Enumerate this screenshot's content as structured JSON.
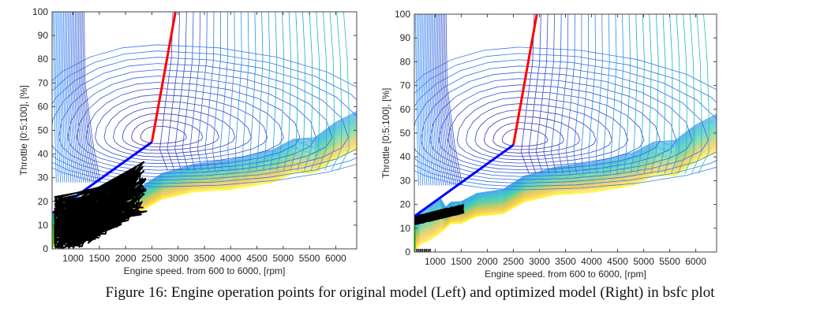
{
  "chart_data": [
    {
      "type": "line",
      "id": "left",
      "panel_label": "original model (Left)",
      "title": "",
      "xlabel": "Engine speed. from 600 to 6000, [rpm]",
      "ylabel": "Throttle [0:5:100], [%]",
      "xlim": [
        600,
        6400
      ],
      "ylim": [
        0,
        100
      ],
      "xticks": [
        1000,
        1500,
        2000,
        2500,
        3000,
        3500,
        4000,
        4500,
        5000,
        5500,
        6000
      ],
      "yticks": [
        0,
        10,
        20,
        30,
        40,
        50,
        60,
        70,
        80,
        90,
        100
      ],
      "grid": false,
      "background": "bsfc contour map (parula colormap, blue low to yellow high)",
      "series": [
        {
          "name": "max-power line",
          "color": "#ff0000",
          "points": [
            [
              2500,
              45
            ],
            [
              2950,
              100
            ]
          ]
        },
        {
          "name": "optimal line",
          "color": "#0000ff",
          "points": [
            [
              600,
              15
            ],
            [
              2500,
              45
            ]
          ]
        },
        {
          "name": "idle line",
          "color": "#00cc00",
          "points": [
            [
              600,
              0
            ],
            [
              600,
              15
            ]
          ]
        },
        {
          "name": "operation points",
          "color": "#000000",
          "region": {
            "x": [
              650,
              2400
            ],
            "y": [
              0,
              37
            ]
          }
        }
      ]
    },
    {
      "type": "line",
      "id": "right",
      "panel_label": "optimized model (Right)",
      "title": "",
      "xlabel": "Engine speed. from 600 to 6000, [rpm]",
      "ylabel": "Throttle [0:5:100], [%]",
      "xlim": [
        600,
        6400
      ],
      "ylim": [
        0,
        100
      ],
      "xticks": [
        1000,
        1500,
        2000,
        2500,
        3000,
        3500,
        4000,
        4500,
        5000,
        5500,
        6000
      ],
      "yticks": [
        0,
        10,
        20,
        30,
        40,
        50,
        60,
        70,
        80,
        90,
        100
      ],
      "grid": false,
      "background": "bsfc contour map (parula colormap, blue low to yellow high)",
      "series": [
        {
          "name": "max-power line",
          "color": "#ff0000",
          "points": [
            [
              2500,
              45
            ],
            [
              2950,
              100
            ]
          ]
        },
        {
          "name": "optimal line",
          "color": "#0000ff",
          "points": [
            [
              600,
              15
            ],
            [
              2500,
              45
            ]
          ]
        },
        {
          "name": "idle line",
          "color": "#00cc00",
          "points": [
            [
              600,
              0
            ],
            [
              600,
              15
            ]
          ]
        },
        {
          "name": "operation points",
          "color": "#000000",
          "region": {
            "x": [
              620,
              1550
            ],
            "y": [
              12,
              20
            ]
          }
        },
        {
          "name": "idle points",
          "color": "#000000",
          "region": {
            "x": [
              650,
              900
            ],
            "y": [
              0,
              0
            ]
          }
        }
      ]
    }
  ],
  "caption": "Figure 16: Engine operation points for original model (Left) and optimized model (Right) in bsfc plot"
}
